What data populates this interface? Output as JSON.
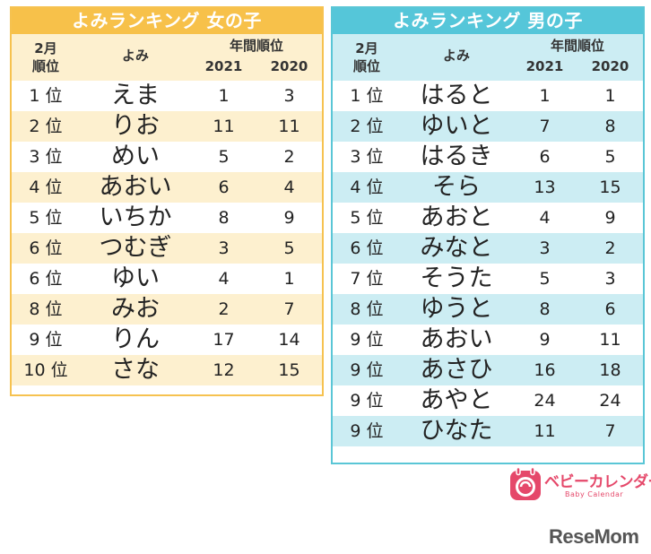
{
  "girls": {
    "title": "よみランキング 女の子",
    "header": {
      "month_line1": "2月",
      "month_line2": "順位",
      "yomi": "よみ",
      "annual": "年間順位",
      "year1": "2021",
      "year2": "2020"
    },
    "rows": [
      {
        "rank": "1 位",
        "yomi": "えま",
        "y2021": "1",
        "y2020": "3"
      },
      {
        "rank": "2 位",
        "yomi": "りお",
        "y2021": "11",
        "y2020": "11"
      },
      {
        "rank": "3 位",
        "yomi": "めい",
        "y2021": "5",
        "y2020": "2"
      },
      {
        "rank": "4 位",
        "yomi": "あおい",
        "y2021": "6",
        "y2020": "4"
      },
      {
        "rank": "5 位",
        "yomi": "いちか",
        "y2021": "8",
        "y2020": "9"
      },
      {
        "rank": "6 位",
        "yomi": "つむぎ",
        "y2021": "3",
        "y2020": "5"
      },
      {
        "rank": "6 位",
        "yomi": "ゆい",
        "y2021": "4",
        "y2020": "1"
      },
      {
        "rank": "8 位",
        "yomi": "みお",
        "y2021": "2",
        "y2020": "7"
      },
      {
        "rank": "9 位",
        "yomi": "りん",
        "y2021": "17",
        "y2020": "14"
      },
      {
        "rank": "10 位",
        "yomi": "さな",
        "y2021": "12",
        "y2020": "15"
      }
    ]
  },
  "boys": {
    "title": "よみランキング 男の子",
    "header": {
      "month_line1": "2月",
      "month_line2": "順位",
      "yomi": "よみ",
      "annual": "年間順位",
      "year1": "2021",
      "year2": "2020"
    },
    "rows": [
      {
        "rank": "1 位",
        "yomi": "はると",
        "y2021": "1",
        "y2020": "1"
      },
      {
        "rank": "2 位",
        "yomi": "ゆいと",
        "y2021": "7",
        "y2020": "8"
      },
      {
        "rank": "3 位",
        "yomi": "はるき",
        "y2021": "6",
        "y2020": "5"
      },
      {
        "rank": "4 位",
        "yomi": "そら",
        "y2021": "13",
        "y2020": "15"
      },
      {
        "rank": "5 位",
        "yomi": "あおと",
        "y2021": "4",
        "y2020": "9"
      },
      {
        "rank": "6 位",
        "yomi": "みなと",
        "y2021": "3",
        "y2020": "2"
      },
      {
        "rank": "7 位",
        "yomi": "そうた",
        "y2021": "5",
        "y2020": "3"
      },
      {
        "rank": "8 位",
        "yomi": "ゆうと",
        "y2021": "8",
        "y2020": "6"
      },
      {
        "rank": "9 位",
        "yomi": "あおい",
        "y2021": "9",
        "y2020": "11"
      },
      {
        "rank": "9 位",
        "yomi": "あさひ",
        "y2021": "16",
        "y2020": "18"
      },
      {
        "rank": "9 位",
        "yomi": "あやと",
        "y2021": "24",
        "y2020": "24"
      },
      {
        "rank": "9 位",
        "yomi": "ひなた",
        "y2021": "11",
        "y2020": "7"
      }
    ]
  },
  "logo": {
    "name": "ベビーカレンダー",
    "sub": "Baby Calendar",
    "icon": "baby-calendar-logo-icon",
    "color": "#e5486a"
  },
  "watermark": "ReseMom",
  "colors": {
    "girls_accent": "#f7c14a",
    "girls_tint": "#fdf0cf",
    "boys_accent": "#55c6d9",
    "boys_tint": "#ccedf3"
  }
}
